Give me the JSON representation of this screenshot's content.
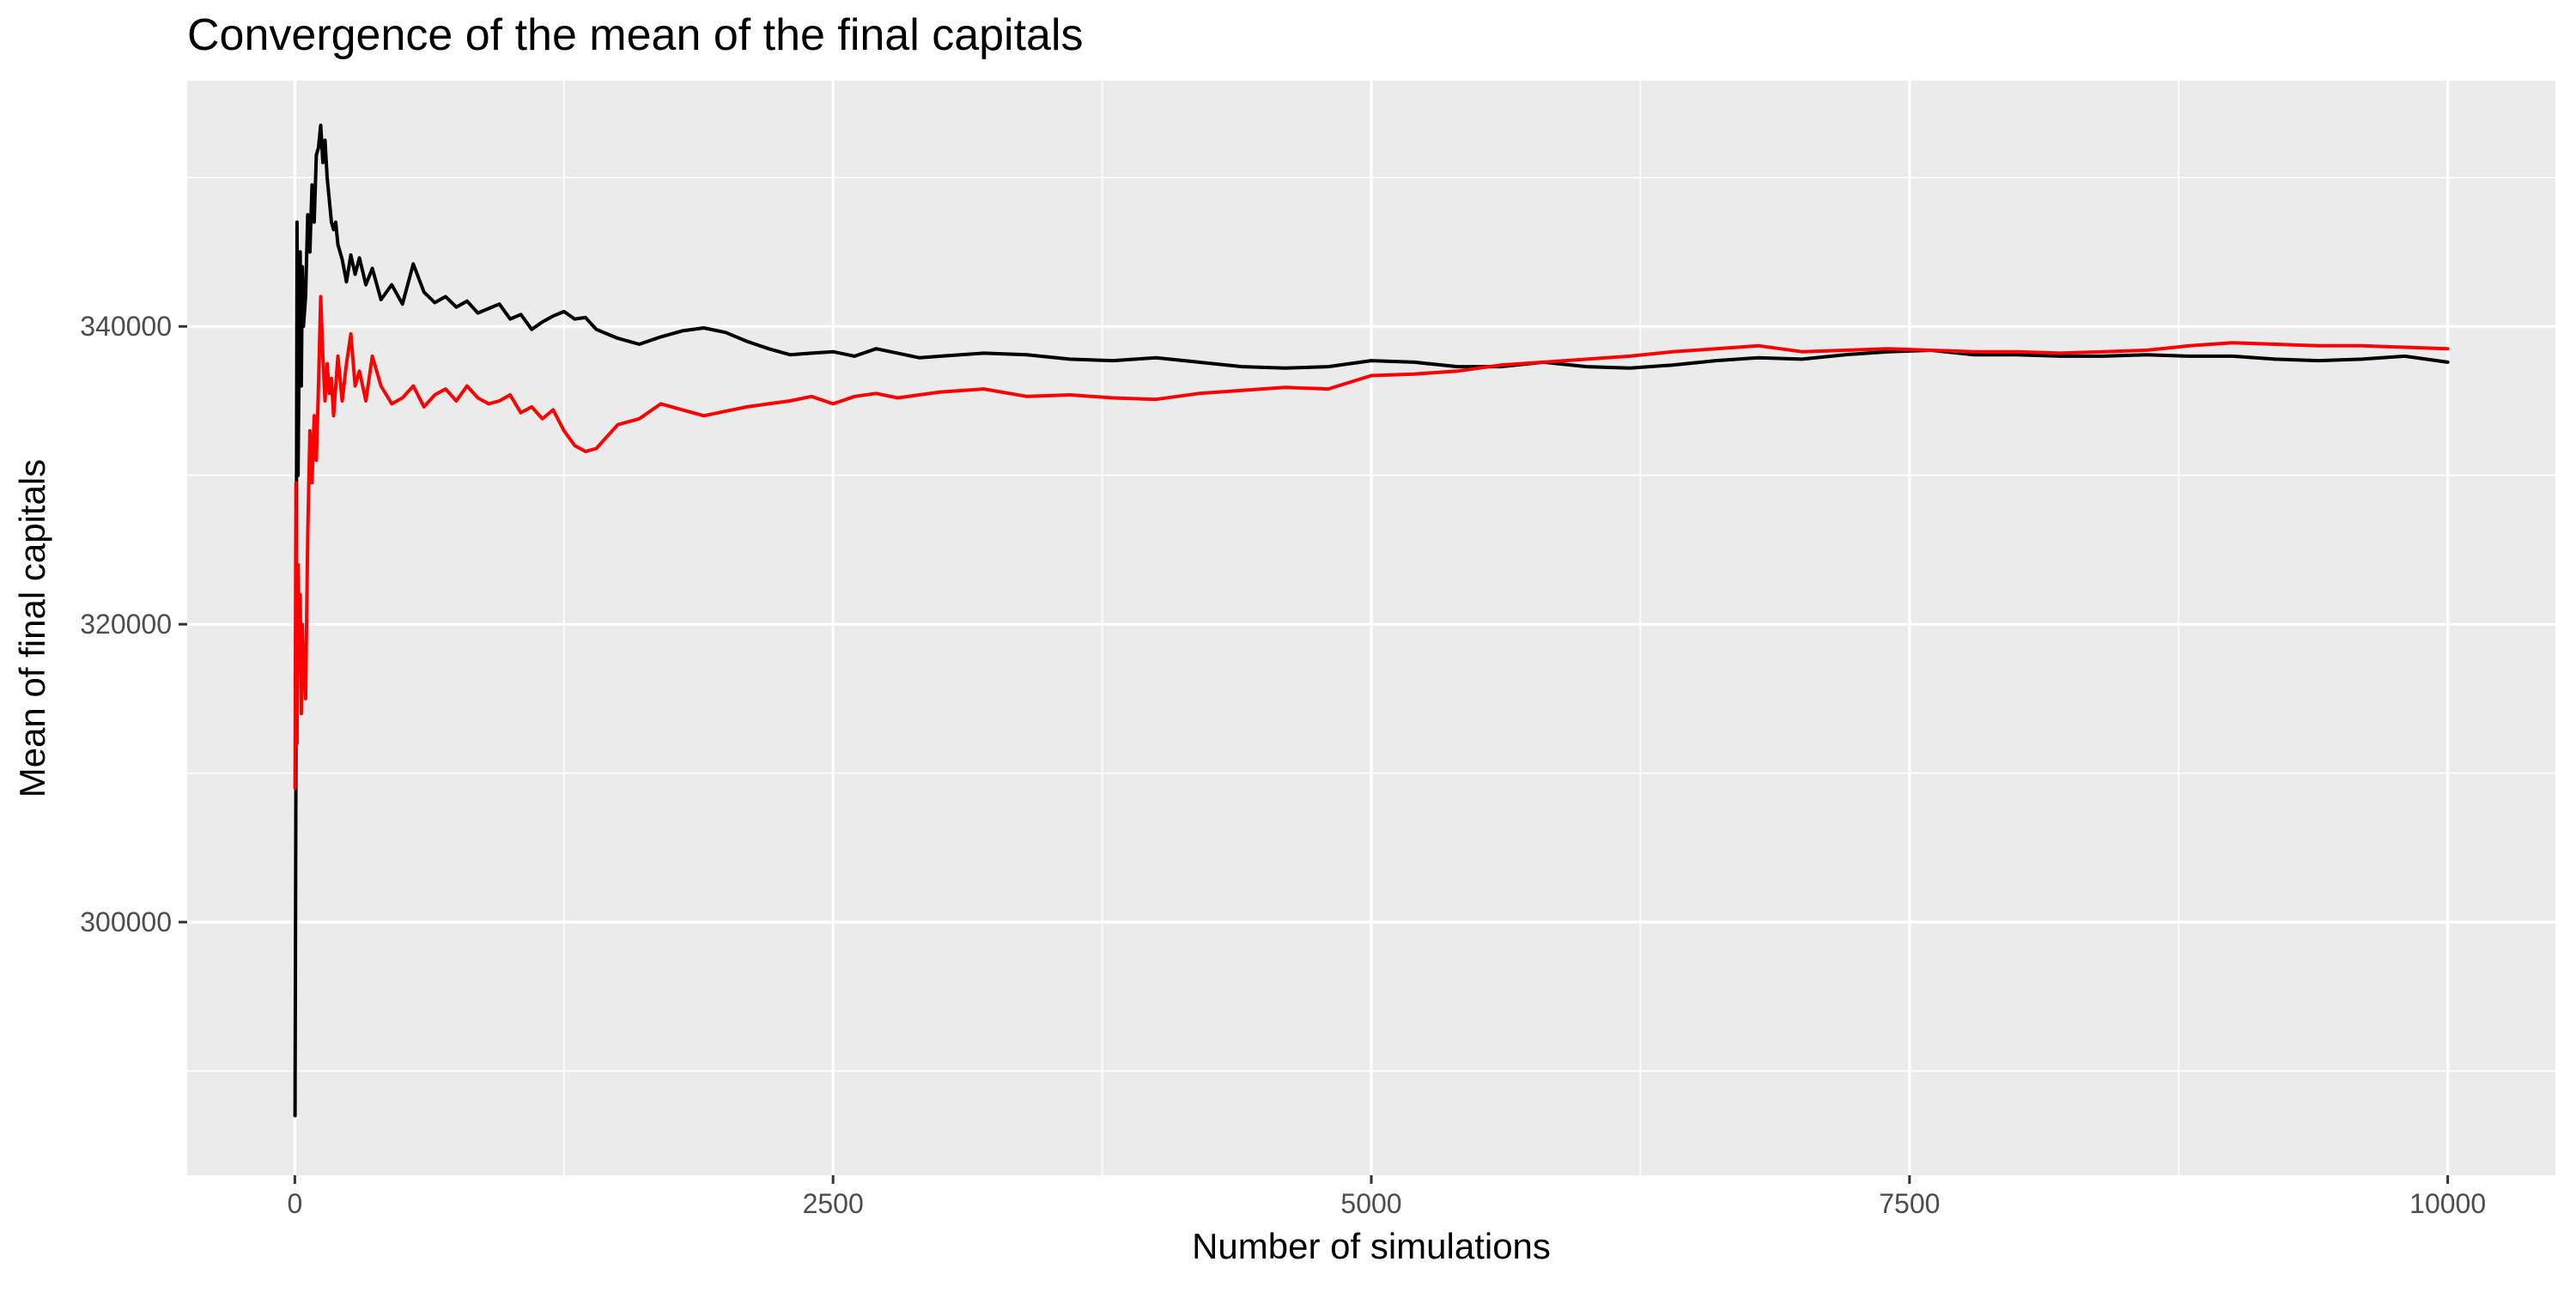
{
  "chart_data": {
    "type": "line",
    "title": "Convergence of the mean of the final capitals",
    "xlabel": "Number of simulations",
    "ylabel": "Mean of final capitals",
    "xlim": [
      -500,
      10500
    ],
    "ylim": [
      283000,
      356500
    ],
    "x_ticks": [
      0,
      2500,
      5000,
      7500,
      10000
    ],
    "x_tick_labels": [
      "0",
      "2500",
      "5000",
      "7500",
      "10000"
    ],
    "y_ticks": [
      300000,
      320000,
      340000
    ],
    "y_tick_labels": [
      "300000",
      "320000",
      "340000"
    ],
    "grid": true,
    "background": "#ebebeb",
    "series": [
      {
        "color": "#000000",
        "x": [
          1,
          5,
          10,
          15,
          20,
          25,
          30,
          35,
          40,
          50,
          60,
          70,
          80,
          90,
          100,
          110,
          120,
          130,
          140,
          150,
          160,
          170,
          180,
          190,
          200,
          220,
          240,
          260,
          280,
          300,
          330,
          360,
          400,
          450,
          500,
          550,
          600,
          650,
          700,
          750,
          800,
          850,
          900,
          950,
          1000,
          1050,
          1100,
          1150,
          1200,
          1250,
          1300,
          1350,
          1400,
          1450,
          1500,
          1600,
          1700,
          1800,
          1900,
          2000,
          2100,
          2200,
          2300,
          2400,
          2500,
          2600,
          2700,
          2800,
          2900,
          3000,
          3200,
          3400,
          3600,
          3800,
          4000,
          4200,
          4400,
          4600,
          4800,
          5000,
          5200,
          5400,
          5600,
          5800,
          6000,
          6200,
          6400,
          6600,
          6800,
          7000,
          7200,
          7400,
          7600,
          7800,
          8000,
          8200,
          8400,
          8600,
          8800,
          9000,
          9200,
          9400,
          9600,
          9800,
          10000
        ],
        "values": [
          287000,
          310000,
          347000,
          330000,
          338000,
          345000,
          336000,
          344000,
          340000,
          342000,
          347500,
          345000,
          349500,
          347000,
          351500,
          352000,
          353500,
          351000,
          352500,
          350000,
          348500,
          347000,
          346500,
          347000,
          345500,
          344500,
          343000,
          344800,
          343500,
          344600,
          342800,
          343900,
          341800,
          342800,
          341500,
          344200,
          342300,
          341600,
          342000,
          341300,
          341700,
          340900,
          341200,
          341500,
          340500,
          340800,
          339800,
          340300,
          340700,
          341000,
          340500,
          340600,
          339800,
          339500,
          339200,
          338800,
          339300,
          339700,
          339900,
          339600,
          339000,
          338500,
          338100,
          338200,
          338300,
          338000,
          338500,
          338200,
          337900,
          338000,
          338200,
          338100,
          337800,
          337700,
          337900,
          337600,
          337300,
          337200,
          337300,
          337700,
          337600,
          337300,
          337300,
          337600,
          337300,
          337200,
          337400,
          337700,
          337900,
          337800,
          338100,
          338300,
          338400,
          338100,
          338100,
          338000,
          338000,
          338100,
          338000,
          338000,
          337800,
          337700,
          337800,
          338000,
          337600
        ]
      },
      {
        "color": "#ff0000",
        "x": [
          1,
          5,
          10,
          15,
          20,
          25,
          30,
          35,
          40,
          50,
          60,
          70,
          80,
          90,
          100,
          110,
          120,
          130,
          140,
          150,
          160,
          170,
          180,
          190,
          200,
          220,
          240,
          260,
          280,
          300,
          330,
          360,
          400,
          450,
          500,
          550,
          600,
          650,
          700,
          750,
          800,
          850,
          900,
          950,
          1000,
          1050,
          1100,
          1150,
          1200,
          1250,
          1300,
          1350,
          1400,
          1450,
          1500,
          1600,
          1700,
          1800,
          1900,
          2000,
          2100,
          2200,
          2300,
          2400,
          2500,
          2600,
          2700,
          2800,
          2900,
          3000,
          3200,
          3400,
          3600,
          3800,
          4000,
          4200,
          4400,
          4600,
          4800,
          5000,
          5200,
          5400,
          5600,
          5800,
          6000,
          6200,
          6400,
          6600,
          6800,
          7000,
          7200,
          7400,
          7600,
          7800,
          8000,
          8200,
          8400,
          8600,
          8800,
          9000,
          9200,
          9400,
          9600,
          9800,
          10000
        ],
        "values": [
          309000,
          329500,
          312000,
          324000,
          318000,
          322000,
          314000,
          320000,
          317000,
          315000,
          326000,
          333000,
          329500,
          334000,
          331000,
          336000,
          342000,
          338000,
          335000,
          337500,
          335500,
          336500,
          334000,
          336000,
          338000,
          335000,
          337500,
          339500,
          336000,
          337000,
          335000,
          338000,
          336000,
          334800,
          335200,
          336000,
          334600,
          335400,
          335800,
          335000,
          336000,
          335200,
          334800,
          335000,
          335400,
          334200,
          334600,
          333800,
          334400,
          333000,
          332000,
          331600,
          331800,
          332600,
          333400,
          333800,
          334800,
          334400,
          334000,
          334300,
          334600,
          334800,
          335000,
          335300,
          334800,
          335300,
          335500,
          335200,
          335400,
          335600,
          335800,
          335300,
          335400,
          335200,
          335100,
          335500,
          335700,
          335900,
          335800,
          336700,
          336800,
          337000,
          337400,
          337600,
          337800,
          338000,
          338300,
          338500,
          338700,
          338300,
          338400,
          338500,
          338400,
          338300,
          338300,
          338200,
          338300,
          338400,
          338700,
          338900,
          338800,
          338700,
          338700,
          338600,
          338500
        ]
      }
    ]
  }
}
